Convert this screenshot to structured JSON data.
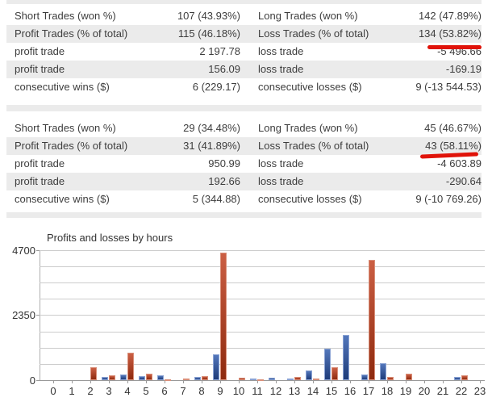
{
  "colors": {
    "row_shade": "#ebebeb",
    "marker_red": "#e01309",
    "profit_bar": "#3a5ca8",
    "loss_bar": "#b6492c"
  },
  "table_block_1": {
    "rows": [
      {
        "shaded": false,
        "cells": [
          "Short Trades (won %)",
          "107 (43.93%)",
          "Long Trades (won %)",
          "142 (47.89%)"
        ]
      },
      {
        "shaded": true,
        "cells": [
          "Profit Trades (% of total)",
          "115 (46.18%)",
          "Loss Trades (% of total)",
          "134 (53.82%)"
        ]
      },
      {
        "shaded": false,
        "cells": [
          "profit trade",
          "2 197.78",
          "loss trade",
          "-5 496.66"
        ]
      },
      {
        "shaded": true,
        "cells": [
          "profit trade",
          "156.09",
          "loss trade",
          "-169.19"
        ]
      },
      {
        "shaded": false,
        "cells": [
          "consecutive wins ($)",
          "6 (229.17)",
          "consecutive losses ($)",
          "9 (-13 544.53)"
        ]
      }
    ]
  },
  "table_block_2": {
    "rows": [
      {
        "shaded": false,
        "cells": [
          "Short Trades (won %)",
          "29 (34.48%)",
          "Long Trades (won %)",
          "45 (46.67%)"
        ]
      },
      {
        "shaded": true,
        "cells": [
          "Profit Trades (% of total)",
          "31 (41.89%)",
          "Loss Trades (% of total)",
          "43 (58.11%)"
        ]
      },
      {
        "shaded": false,
        "cells": [
          "profit trade",
          "950.99",
          "loss trade",
          "-4 603.89"
        ]
      },
      {
        "shaded": true,
        "cells": [
          "profit trade",
          "192.66",
          "loss trade",
          "-290.64"
        ]
      },
      {
        "shaded": false,
        "cells": [
          "consecutive wins ($)",
          "5 (344.88)",
          "consecutive losses ($)",
          "9 (-10 769.26)"
        ]
      }
    ]
  },
  "annotations": {
    "underline_1_target": "134 (53.82%)",
    "underline_2_target": "43 (58.11%)"
  },
  "chart_data": {
    "type": "bar",
    "title": "Profits and losses by hours",
    "xlabel": "",
    "ylabel": "",
    "ylim": [
      0,
      4700
    ],
    "ytick_labels": [
      "0",
      "2350",
      "4700"
    ],
    "gridline_step": 587.5,
    "grid": true,
    "legend_position": "none",
    "categories": [
      "0",
      "1",
      "2",
      "3",
      "4",
      "5",
      "6",
      "7",
      "8",
      "9",
      "10",
      "11",
      "12",
      "13",
      "14",
      "15",
      "16",
      "17",
      "18",
      "19",
      "20",
      "21",
      "22",
      "23"
    ],
    "series": [
      {
        "name": "profit",
        "color": "#3a5ca8",
        "values": [
          0,
          0,
          0,
          110,
          190,
          140,
          180,
          0,
          110,
          940,
          0,
          60,
          90,
          50,
          340,
          1140,
          1640,
          200,
          620,
          0,
          0,
          0,
          110,
          0
        ]
      },
      {
        "name": "loss",
        "color": "#b6492c",
        "values": [
          0,
          0,
          460,
          180,
          980,
          240,
          30,
          50,
          140,
          4620,
          85,
          40,
          0,
          130,
          70,
          460,
          0,
          4350,
          120,
          230,
          0,
          0,
          180,
          0
        ]
      }
    ]
  }
}
